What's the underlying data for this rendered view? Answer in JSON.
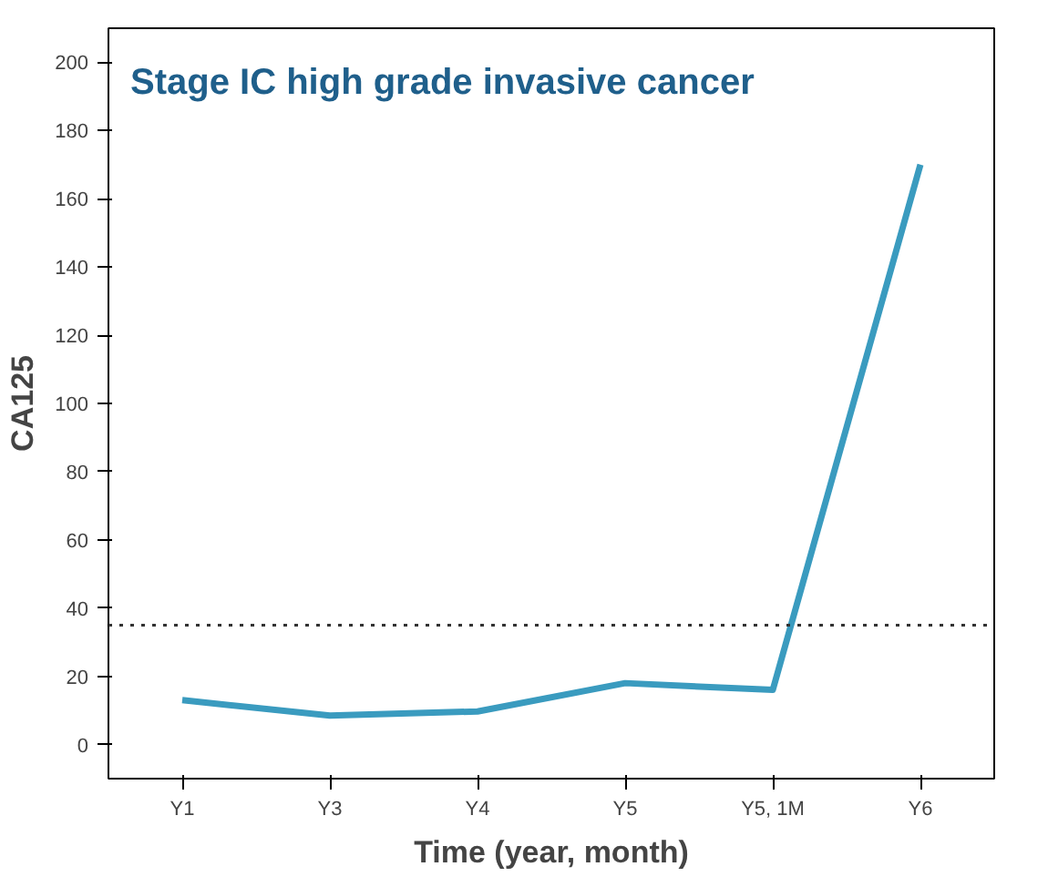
{
  "chart_data": {
    "type": "line",
    "title": "Stage IC high grade invasive cancer",
    "xlabel": "Time (year, month)",
    "ylabel": "CA125",
    "categories": [
      "Y1",
      "Y3",
      "Y4",
      "Y5",
      "Y5, 1M",
      "Y6"
    ],
    "series": [
      {
        "color": "#3a9bbf",
        "values": [
          13,
          8.5,
          9.7,
          18,
          16,
          170
        ]
      }
    ],
    "ylim": [
      -10,
      210
    ],
    "yticks": [
      0,
      20,
      40,
      60,
      80,
      100,
      120,
      140,
      160,
      180,
      200
    ],
    "ref_lines": [
      {
        "axis": "y",
        "value": 35,
        "label": null,
        "color": "#333333",
        "line_style": "dotted"
      }
    ],
    "grid": false,
    "marker": "none",
    "line_style": "solid"
  }
}
